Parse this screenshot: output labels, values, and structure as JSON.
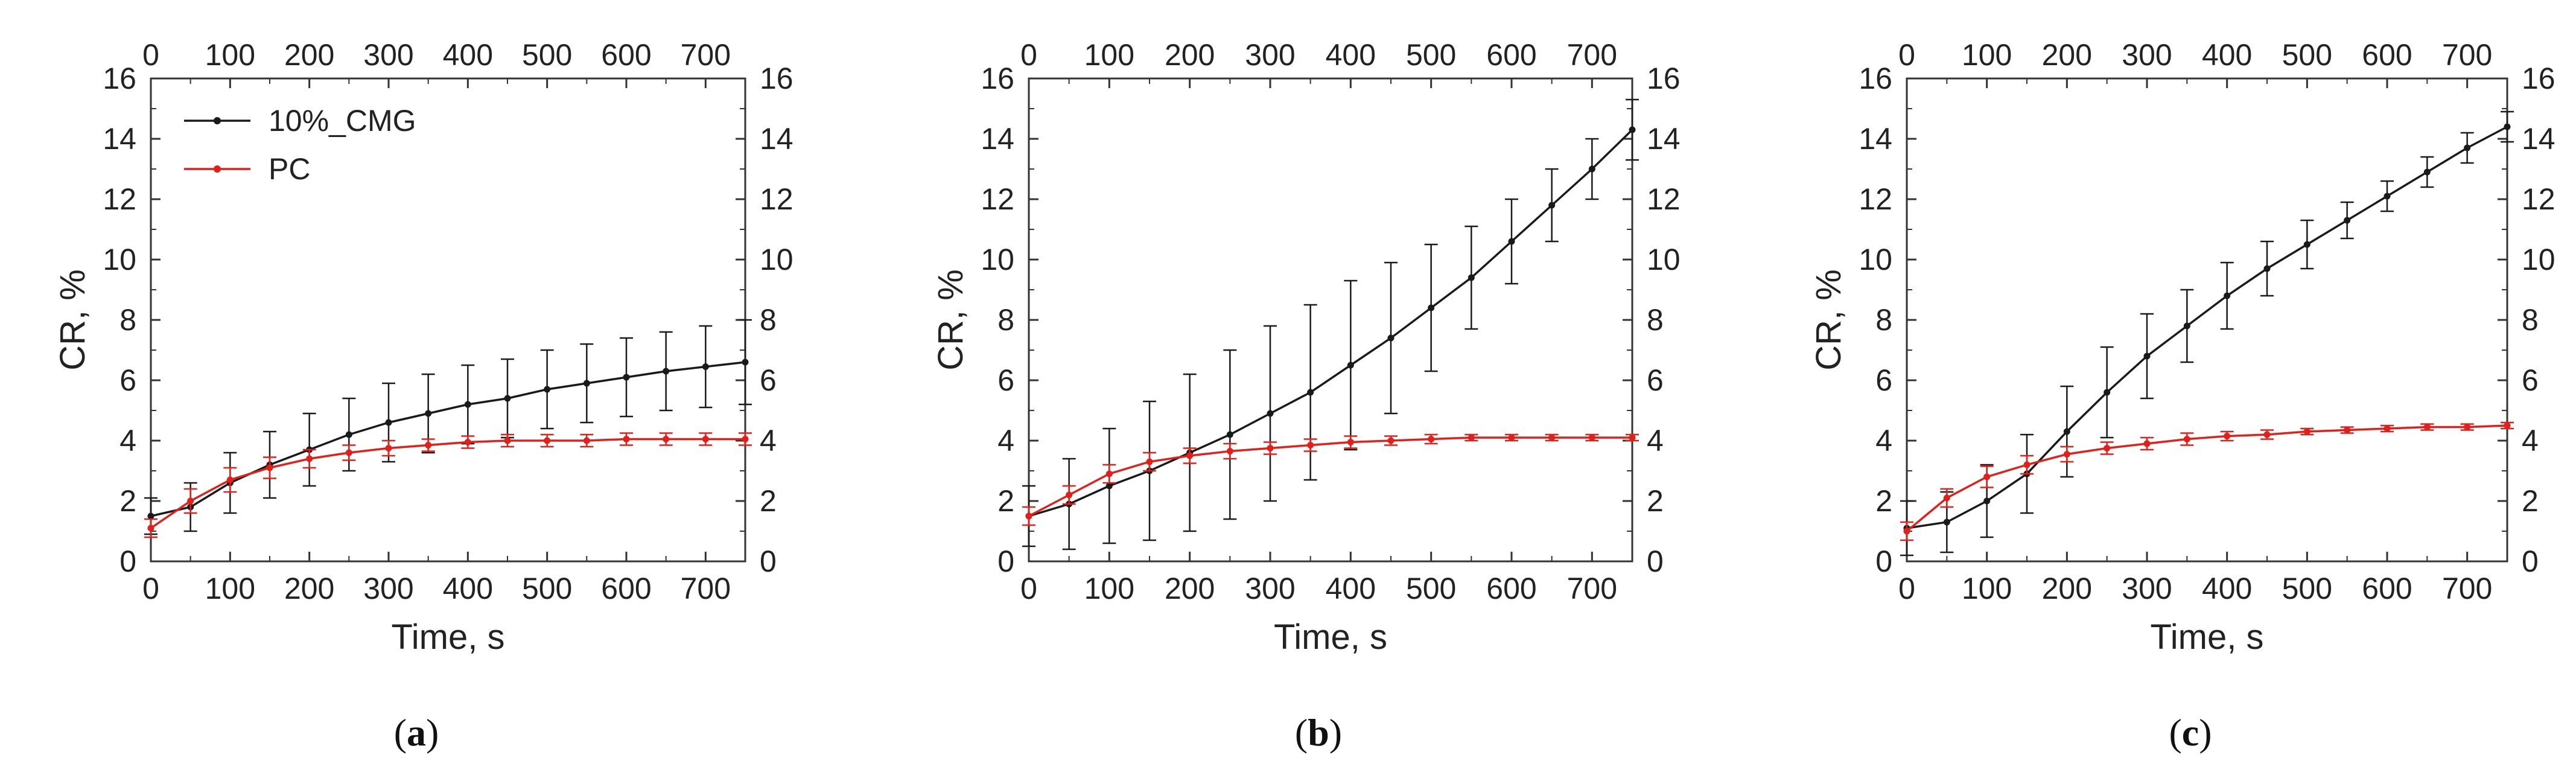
{
  "figure": {
    "colors": {
      "series_cmg": "#1a1a1a",
      "series_pc": "#e0201b",
      "axis": "#333333"
    }
  },
  "chart_data": [
    {
      "type": "line",
      "panel_label": "a",
      "xlabel": "Time, s",
      "ylabel": "CR, %",
      "xlim": [
        0,
        750
      ],
      "ylim": [
        0,
        16
      ],
      "xticks": [
        0,
        100,
        200,
        300,
        400,
        500,
        600,
        700
      ],
      "yticks": [
        0,
        2,
        4,
        6,
        8,
        10,
        12,
        14,
        16
      ],
      "legend": {
        "position": "top-left",
        "entries": [
          "10%_CMG",
          "PC"
        ]
      },
      "series": [
        {
          "name": "10%_CMG",
          "color": "#1a1a1a",
          "points": [
            [
              0,
              1.5,
              0.6
            ],
            [
              50,
              1.8,
              0.8
            ],
            [
              100,
              2.6,
              1.0
            ],
            [
              150,
              3.2,
              1.1
            ],
            [
              200,
              3.7,
              1.2
            ],
            [
              250,
              4.2,
              1.2
            ],
            [
              300,
              4.6,
              1.3
            ],
            [
              350,
              4.9,
              1.3
            ],
            [
              400,
              5.2,
              1.3
            ],
            [
              450,
              5.4,
              1.3
            ],
            [
              500,
              5.7,
              1.3
            ],
            [
              550,
              5.9,
              1.3
            ],
            [
              600,
              6.1,
              1.3
            ],
            [
              650,
              6.3,
              1.3
            ],
            [
              700,
              6.45,
              1.35
            ],
            [
              750,
              6.6,
              1.4
            ]
          ]
        },
        {
          "name": "PC",
          "color": "#e0201b",
          "points": [
            [
              0,
              1.1,
              0.3
            ],
            [
              50,
              2.0,
              0.4
            ],
            [
              100,
              2.7,
              0.4
            ],
            [
              150,
              3.1,
              0.35
            ],
            [
              200,
              3.4,
              0.3
            ],
            [
              250,
              3.6,
              0.25
            ],
            [
              300,
              3.75,
              0.25
            ],
            [
              350,
              3.85,
              0.2
            ],
            [
              400,
              3.95,
              0.2
            ],
            [
              450,
              4.0,
              0.2
            ],
            [
              500,
              4.0,
              0.2
            ],
            [
              550,
              4.0,
              0.2
            ],
            [
              600,
              4.05,
              0.2
            ],
            [
              650,
              4.05,
              0.2
            ],
            [
              700,
              4.05,
              0.2
            ],
            [
              750,
              4.05,
              0.2
            ]
          ]
        }
      ]
    },
    {
      "type": "line",
      "panel_label": "b",
      "xlabel": "Time, s",
      "ylabel": "CR, %",
      "xlim": [
        0,
        750
      ],
      "ylim": [
        0,
        16
      ],
      "xticks": [
        0,
        100,
        200,
        300,
        400,
        500,
        600,
        700
      ],
      "yticks": [
        0,
        2,
        4,
        6,
        8,
        10,
        12,
        14,
        16
      ],
      "series": [
        {
          "name": "10%_CMG",
          "color": "#1a1a1a",
          "points": [
            [
              0,
              1.5,
              1.0
            ],
            [
              50,
              1.9,
              1.5
            ],
            [
              100,
              2.5,
              1.9
            ],
            [
              150,
              3.0,
              2.3
            ],
            [
              200,
              3.6,
              2.6
            ],
            [
              250,
              4.2,
              2.8
            ],
            [
              300,
              4.9,
              2.9
            ],
            [
              350,
              5.6,
              2.9
            ],
            [
              400,
              6.5,
              2.8
            ],
            [
              450,
              7.4,
              2.5
            ],
            [
              500,
              8.4,
              2.1
            ],
            [
              550,
              9.4,
              1.7
            ],
            [
              600,
              10.6,
              1.4
            ],
            [
              650,
              11.8,
              1.2
            ],
            [
              700,
              13.0,
              1.0
            ],
            [
              750,
              14.3,
              1.0
            ]
          ]
        },
        {
          "name": "PC",
          "color": "#e0201b",
          "points": [
            [
              0,
              1.5,
              0.3
            ],
            [
              50,
              2.2,
              0.3
            ],
            [
              100,
              2.9,
              0.3
            ],
            [
              150,
              3.3,
              0.3
            ],
            [
              200,
              3.5,
              0.25
            ],
            [
              250,
              3.65,
              0.25
            ],
            [
              300,
              3.75,
              0.2
            ],
            [
              350,
              3.85,
              0.2
            ],
            [
              400,
              3.95,
              0.2
            ],
            [
              450,
              4.0,
              0.15
            ],
            [
              500,
              4.05,
              0.15
            ],
            [
              550,
              4.1,
              0.1
            ],
            [
              600,
              4.1,
              0.1
            ],
            [
              650,
              4.1,
              0.1
            ],
            [
              700,
              4.1,
              0.1
            ],
            [
              750,
              4.1,
              0.1
            ]
          ]
        }
      ]
    },
    {
      "type": "line",
      "panel_label": "c",
      "xlabel": "Time, s",
      "ylabel": "CR, %",
      "xlim": [
        0,
        750
      ],
      "ylim": [
        0,
        16
      ],
      "xticks": [
        0,
        100,
        200,
        300,
        400,
        500,
        600,
        700
      ],
      "yticks": [
        0,
        2,
        4,
        6,
        8,
        10,
        12,
        14,
        16
      ],
      "series": [
        {
          "name": "10%_CMG",
          "color": "#1a1a1a",
          "points": [
            [
              0,
              1.1,
              0.9
            ],
            [
              50,
              1.3,
              1.0
            ],
            [
              100,
              2.0,
              1.2
            ],
            [
              150,
              2.9,
              1.3
            ],
            [
              200,
              4.3,
              1.5
            ],
            [
              250,
              5.6,
              1.5
            ],
            [
              300,
              6.8,
              1.4
            ],
            [
              350,
              7.8,
              1.2
            ],
            [
              400,
              8.8,
              1.1
            ],
            [
              450,
              9.7,
              0.9
            ],
            [
              500,
              10.5,
              0.8
            ],
            [
              550,
              11.3,
              0.6
            ],
            [
              600,
              12.1,
              0.5
            ],
            [
              650,
              12.9,
              0.5
            ],
            [
              700,
              13.7,
              0.5
            ],
            [
              750,
              14.4,
              0.5
            ]
          ]
        },
        {
          "name": "PC",
          "color": "#e0201b",
          "points": [
            [
              0,
              1.0,
              0.3
            ],
            [
              50,
              2.1,
              0.3
            ],
            [
              100,
              2.8,
              0.35
            ],
            [
              150,
              3.2,
              0.3
            ],
            [
              200,
              3.55,
              0.25
            ],
            [
              250,
              3.75,
              0.2
            ],
            [
              300,
              3.9,
              0.2
            ],
            [
              350,
              4.05,
              0.2
            ],
            [
              400,
              4.15,
              0.15
            ],
            [
              450,
              4.2,
              0.15
            ],
            [
              500,
              4.3,
              0.1
            ],
            [
              550,
              4.35,
              0.1
            ],
            [
              600,
              4.4,
              0.1
            ],
            [
              650,
              4.45,
              0.1
            ],
            [
              700,
              4.45,
              0.1
            ],
            [
              750,
              4.5,
              0.1
            ]
          ]
        }
      ]
    }
  ]
}
